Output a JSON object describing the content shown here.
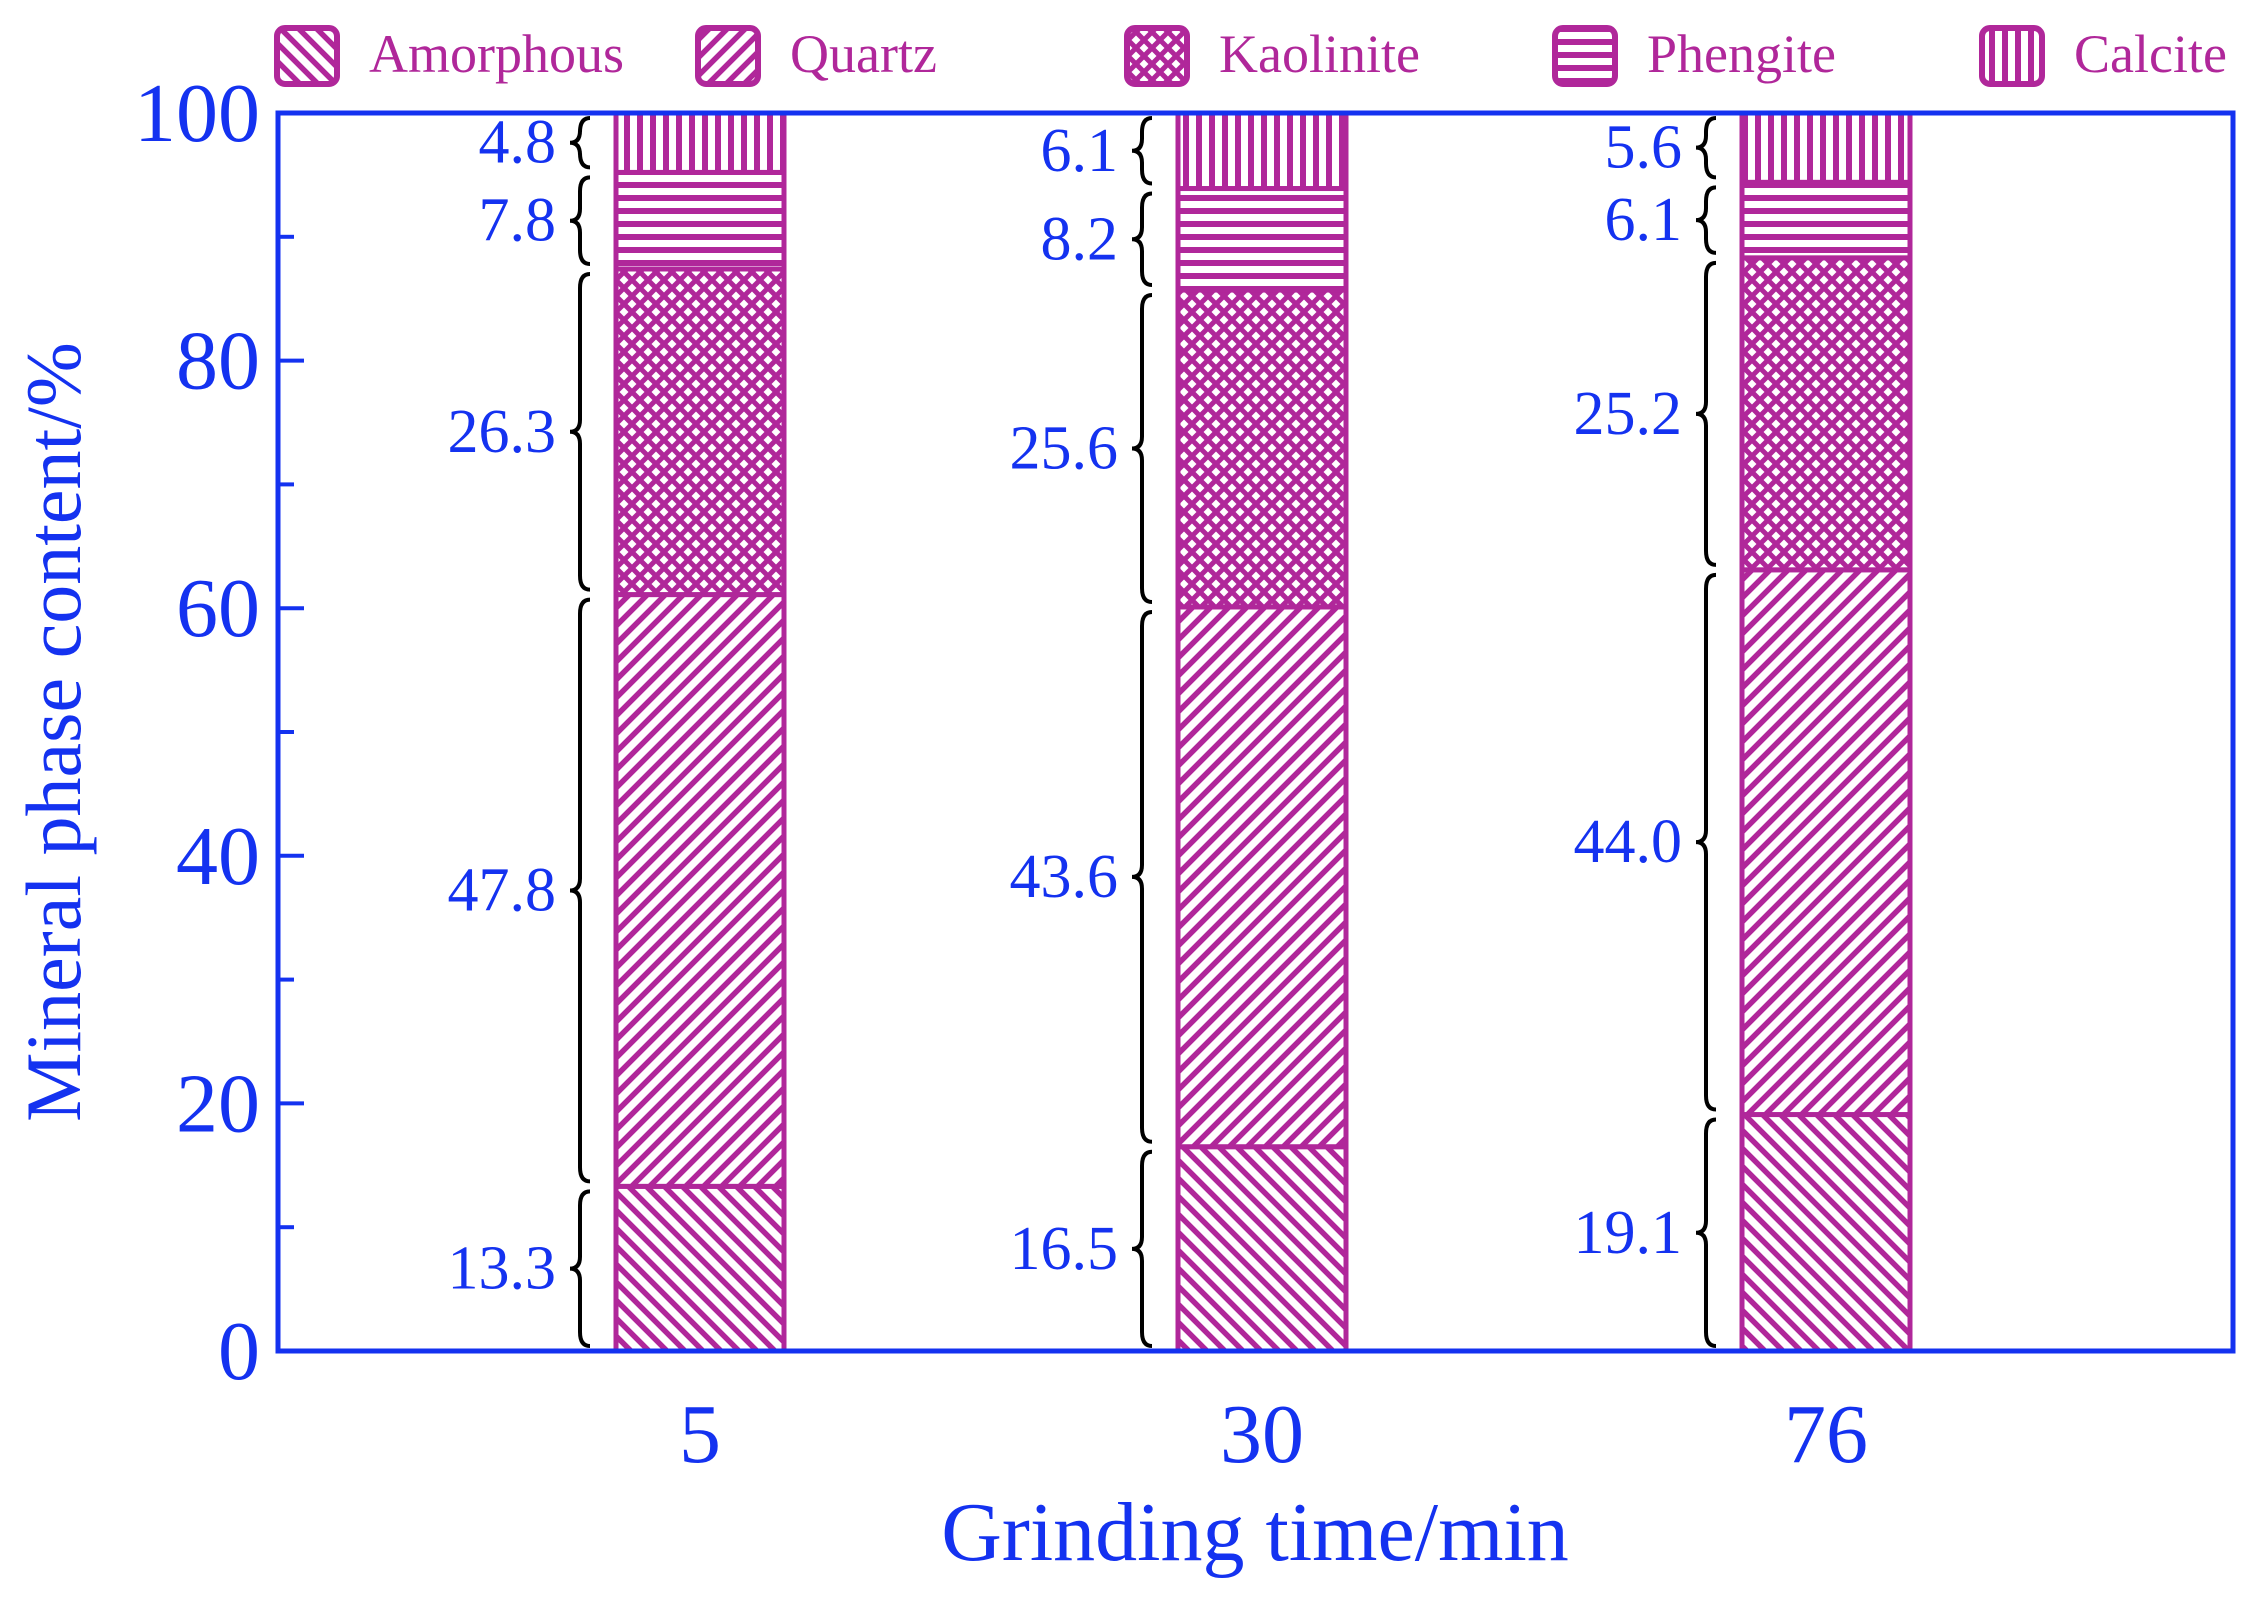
{
  "chart_data": {
    "type": "bar",
    "stacked": true,
    "title": "",
    "xlabel": "Grinding time/min",
    "ylabel": "Mineral phase content/%",
    "categories": [
      "5",
      "30",
      "76"
    ],
    "ylim": [
      0,
      100
    ],
    "yticks": [
      "0",
      "20",
      "40",
      "60",
      "80",
      "100"
    ],
    "legend_position": "top",
    "series": [
      {
        "name": "Amorphous",
        "pattern": "diagonal-down",
        "values": [
          13.3,
          16.5,
          19.1
        ],
        "labels": [
          "13.3",
          "16.5",
          "19.1"
        ]
      },
      {
        "name": "Quartz",
        "pattern": "diagonal-up",
        "values": [
          47.8,
          43.6,
          44.0
        ],
        "labels": [
          "47.8",
          "43.6",
          "44.0"
        ]
      },
      {
        "name": "Kaolinite",
        "pattern": "crosshatch",
        "values": [
          26.3,
          25.6,
          25.2
        ],
        "labels": [
          "26.3",
          "25.6",
          "25.2"
        ]
      },
      {
        "name": "Phengite",
        "pattern": "horizontal",
        "values": [
          7.8,
          8.2,
          6.1
        ],
        "labels": [
          "7.8",
          "8.2",
          "6.1"
        ]
      },
      {
        "name": "Calcite",
        "pattern": "vertical",
        "values": [
          4.8,
          6.1,
          5.6
        ],
        "labels": [
          "4.8",
          "6.1",
          "5.6"
        ]
      }
    ],
    "colors": {
      "axis": "#1432f0",
      "bar": "#b0279a",
      "brace": "#000000"
    }
  }
}
